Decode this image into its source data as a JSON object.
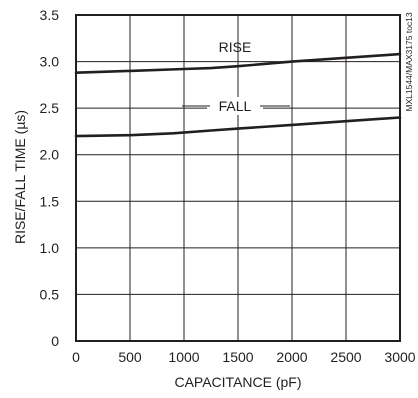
{
  "chart_data": {
    "type": "line",
    "title": "",
    "xlabel": "CAPACITANCE (pF)",
    "ylabel": "RISE/FALL TIME (µs)",
    "xlim": [
      0,
      3000
    ],
    "ylim": [
      0,
      3.5
    ],
    "x_ticks": [
      0,
      500,
      1000,
      1500,
      2000,
      2500,
      3000
    ],
    "y_ticks": [
      0,
      0.5,
      1.0,
      1.5,
      2.0,
      2.5,
      3.0,
      3.5
    ],
    "x_tick_labels": [
      "0",
      "500",
      "1000",
      "1500",
      "2000",
      "2500",
      "3000"
    ],
    "y_tick_labels": [
      "0",
      "0.5",
      "1.0",
      "1.5",
      "2.0",
      "2.5",
      "3.0",
      "3.5"
    ],
    "grid": true,
    "series": [
      {
        "name": "RISE",
        "x": [
          0,
          500,
          1000,
          1250,
          1500,
          2000,
          2500,
          3000
        ],
        "y": [
          2.88,
          2.9,
          2.92,
          2.93,
          2.95,
          3.0,
          3.04,
          3.08
        ]
      },
      {
        "name": "FALL",
        "x": [
          0,
          500,
          900,
          1250,
          1500,
          2000,
          2500,
          3000
        ],
        "y": [
          2.2,
          2.21,
          2.23,
          2.26,
          2.28,
          2.32,
          2.36,
          2.4
        ]
      }
    ],
    "annotations": [
      "MXL1544/MAX3175 toc13"
    ]
  }
}
